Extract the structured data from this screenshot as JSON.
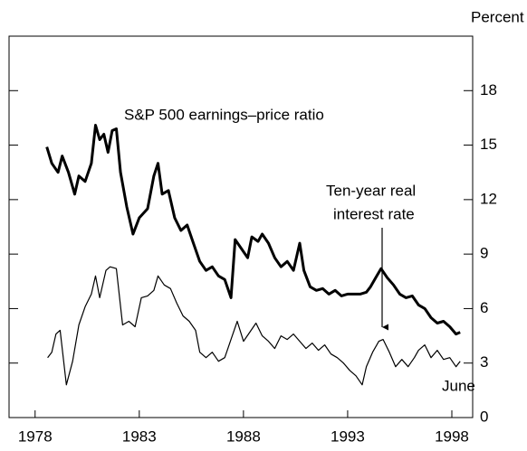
{
  "chart_data": {
    "type": "line",
    "y_axis_label": "Percent",
    "annotations": [
      "S&P 500 earnings–price ratio",
      "Ten-year real",
      "interest rate",
      "June"
    ],
    "xlim": [
      1976.75,
      1999
    ],
    "xticks": [
      1978,
      1983,
      1988,
      1993,
      1998
    ],
    "ylim": [
      0,
      21
    ],
    "yticks": [
      0,
      3,
      6,
      9,
      12,
      15,
      18
    ],
    "grid": false,
    "series": [
      {
        "color": "#000000",
        "x": [
          1978.56,
          1978.8,
          1979.1,
          1979.3,
          1979.6,
          1979.9,
          1980.1,
          1980.4,
          1980.7,
          1980.9,
          1981.1,
          1981.3,
          1981.5,
          1981.7,
          1981.9,
          1982.1,
          1982.4,
          1982.7,
          1983.0,
          1983.4,
          1983.7,
          1983.9,
          1984.1,
          1984.4,
          1984.7,
          1985.0,
          1985.3,
          1985.6,
          1985.9,
          1986.2,
          1986.5,
          1986.8,
          1987.1,
          1987.4,
          1987.6,
          1987.9,
          1988.2,
          1988.4,
          1988.7,
          1988.9,
          1989.2,
          1989.5,
          1989.8,
          1990.1,
          1990.4,
          1990.7,
          1990.9,
          1991.2,
          1991.5,
          1991.8,
          1992.1,
          1992.4,
          1992.7,
          1993.0,
          1993.3,
          1993.6,
          1993.9,
          1994.1,
          1994.4,
          1994.6,
          1994.9,
          1995.2,
          1995.5,
          1995.8,
          1996.1,
          1996.4,
          1996.7,
          1997.0,
          1997.3,
          1997.6,
          1997.9,
          1998.2,
          1998.4
        ],
        "values": [
          14.9,
          14.0,
          13.5,
          14.4,
          13.5,
          12.3,
          13.3,
          13.0,
          14.0,
          16.1,
          15.3,
          15.6,
          14.6,
          15.8,
          15.9,
          13.5,
          11.6,
          10.1,
          11.0,
          11.5,
          13.3,
          14.0,
          12.3,
          12.5,
          11.0,
          10.3,
          10.6,
          9.6,
          8.6,
          8.1,
          8.3,
          7.8,
          7.6,
          6.6,
          9.8,
          9.3,
          8.8,
          9.95,
          9.7,
          10.1,
          9.6,
          8.8,
          8.3,
          8.6,
          8.1,
          9.6,
          8.1,
          7.2,
          7.0,
          7.1,
          6.8,
          7.0,
          6.7,
          6.8,
          6.8,
          6.8,
          6.9,
          7.2,
          7.8,
          8.2,
          7.7,
          7.3,
          6.8,
          6.6,
          6.7,
          6.2,
          6.0,
          5.5,
          5.2,
          5.3,
          5.0,
          4.6,
          4.7
        ]
      },
      {
        "color": "#000000",
        "x": [
          1978.6,
          1978.8,
          1979.0,
          1979.2,
          1979.5,
          1979.8,
          1980.1,
          1980.4,
          1980.7,
          1980.9,
          1981.1,
          1981.4,
          1981.6,
          1981.9,
          1982.2,
          1982.5,
          1982.8,
          1983.1,
          1983.4,
          1983.7,
          1983.9,
          1984.2,
          1984.5,
          1984.8,
          1985.1,
          1985.4,
          1985.7,
          1985.9,
          1986.2,
          1986.5,
          1986.8,
          1987.1,
          1987.4,
          1987.7,
          1988.0,
          1988.3,
          1988.6,
          1988.9,
          1989.2,
          1989.5,
          1989.8,
          1990.1,
          1990.4,
          1990.7,
          1991.0,
          1991.3,
          1991.6,
          1991.9,
          1992.2,
          1992.5,
          1992.8,
          1993.1,
          1993.4,
          1993.7,
          1993.9,
          1994.2,
          1994.5,
          1994.7,
          1995.0,
          1995.3,
          1995.6,
          1995.9,
          1996.2,
          1996.4,
          1996.7,
          1997.0,
          1997.3,
          1997.6,
          1997.9,
          1998.2,
          1998.4
        ],
        "values": [
          3.3,
          3.6,
          4.6,
          4.8,
          1.8,
          3.1,
          5.1,
          6.1,
          6.8,
          7.8,
          6.6,
          8.1,
          8.3,
          8.2,
          5.1,
          5.3,
          5.0,
          6.6,
          6.7,
          7.0,
          7.8,
          7.3,
          7.1,
          6.3,
          5.6,
          5.3,
          4.8,
          3.6,
          3.3,
          3.6,
          3.1,
          3.3,
          4.3,
          5.3,
          4.2,
          4.7,
          5.2,
          4.5,
          4.2,
          3.8,
          4.5,
          4.3,
          4.6,
          4.2,
          3.8,
          4.1,
          3.7,
          4.0,
          3.5,
          3.3,
          3.0,
          2.6,
          2.3,
          1.8,
          2.8,
          3.6,
          4.2,
          4.3,
          3.6,
          2.8,
          3.2,
          2.8,
          3.3,
          3.7,
          4.0,
          3.3,
          3.7,
          3.2,
          3.3,
          2.8,
          3.1
        ]
      }
    ]
  }
}
